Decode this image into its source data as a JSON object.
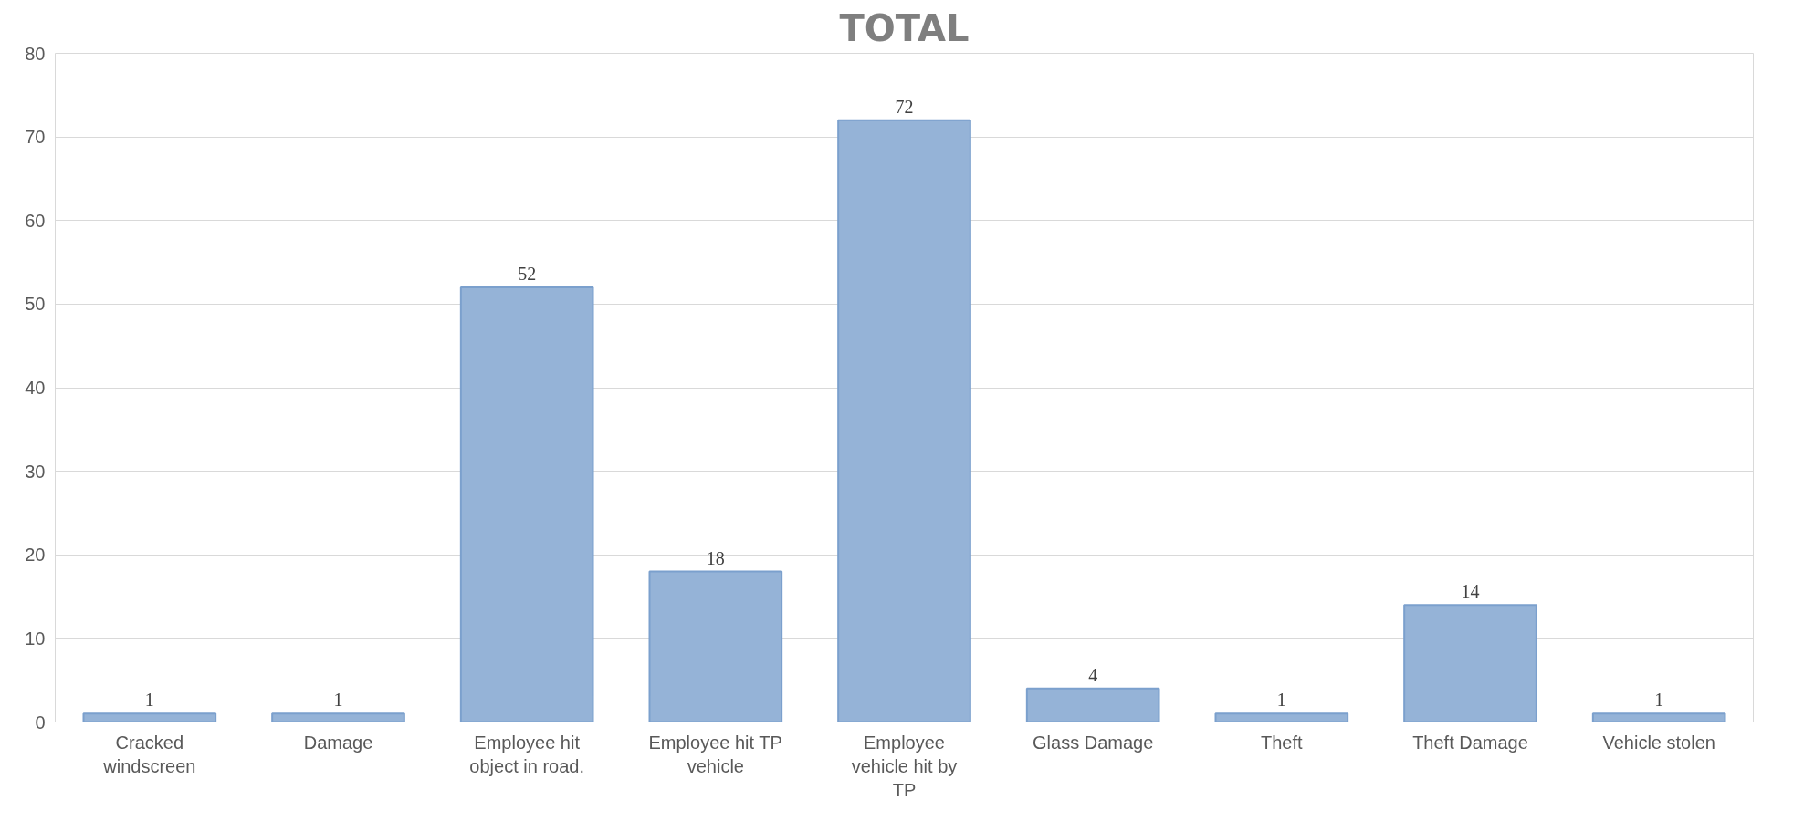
{
  "chart_data": {
    "type": "bar",
    "title": "TOTAL",
    "categories": [
      "Cracked windscreen",
      "Damage",
      "Employee hit object in road.",
      "Employee hit TP vehicle",
      "Employee vehicle hit by TP",
      "Glass Damage",
      "Theft",
      "Theft Damage",
      "Vehicle stolen"
    ],
    "values": [
      1,
      1,
      52,
      18,
      72,
      4,
      1,
      14,
      1
    ],
    "color": "#95b3d7",
    "ylim": [
      0,
      80
    ],
    "yticks": [
      0,
      10,
      20,
      30,
      40,
      50,
      60,
      70,
      80
    ],
    "grid": "y",
    "data_labels": true
  }
}
